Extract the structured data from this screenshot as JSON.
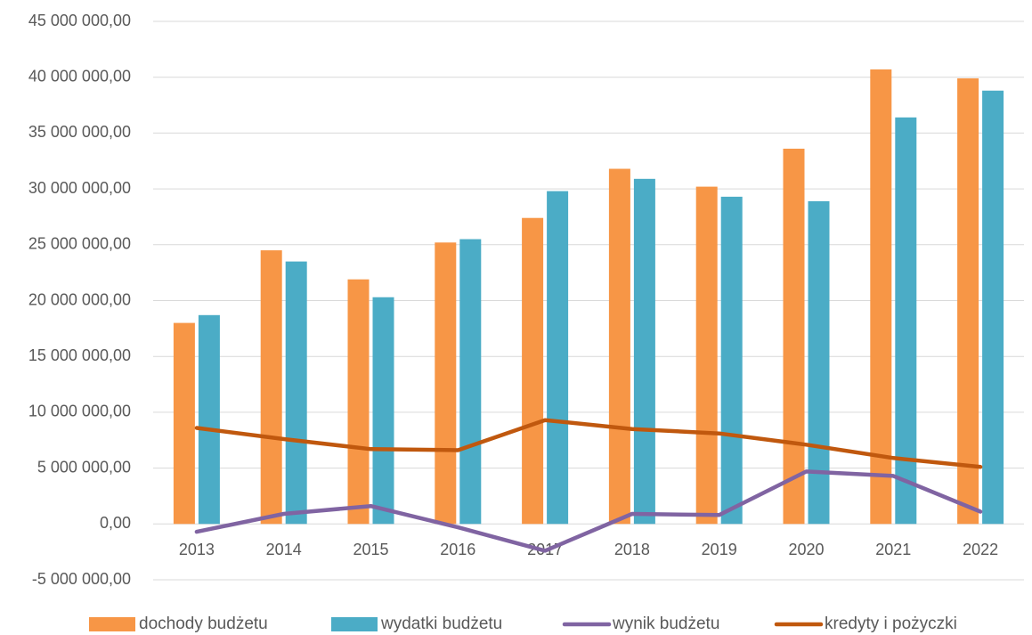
{
  "chart_data": {
    "type": "bar",
    "categories": [
      "2013",
      "2014",
      "2015",
      "2016",
      "2017",
      "2018",
      "2019",
      "2020",
      "2021",
      "2022"
    ],
    "series": [
      {
        "name": "dochody budżetu",
        "type": "bar",
        "color": "#f79646",
        "values": [
          18000000,
          24500000,
          21900000,
          25200000,
          27400000,
          31800000,
          30200000,
          33600000,
          40700000,
          39900000
        ]
      },
      {
        "name": "wydatki budżetu",
        "type": "bar",
        "color": "#4bacc6",
        "values": [
          18700000,
          23500000,
          20300000,
          25500000,
          29800000,
          30900000,
          29300000,
          28900000,
          36400000,
          38800000
        ]
      },
      {
        "name": "wynik budżetu",
        "type": "line",
        "color": "#8064a2",
        "values": [
          -700000,
          900000,
          1600000,
          -300000,
          -2400000,
          900000,
          800000,
          4700000,
          4300000,
          1100000
        ]
      },
      {
        "name": "kredyty i pożyczki",
        "type": "line",
        "color": "#c0580e",
        "values": [
          8600000,
          7600000,
          6700000,
          6600000,
          9300000,
          8500000,
          8100000,
          7100000,
          5900000,
          5100000
        ]
      }
    ],
    "ylim": [
      -5000000,
      45000000
    ],
    "yticks": [
      {
        "value": -5000000,
        "label": "-5 000 000,00"
      },
      {
        "value": 0,
        "label": "0,00"
      },
      {
        "value": 5000000,
        "label": "5 000 000,00"
      },
      {
        "value": 10000000,
        "label": "10 000 000,00"
      },
      {
        "value": 15000000,
        "label": "15 000 000,00"
      },
      {
        "value": 20000000,
        "label": "20 000 000,00"
      },
      {
        "value": 25000000,
        "label": "25 000 000,00"
      },
      {
        "value": 30000000,
        "label": "30 000 000,00"
      },
      {
        "value": 35000000,
        "label": "35 000 000,00"
      },
      {
        "value": 40000000,
        "label": "40 000 000,00"
      },
      {
        "value": 45000000,
        "label": "45 000 000,00"
      }
    ],
    "grid": true,
    "legend": "bottom"
  }
}
